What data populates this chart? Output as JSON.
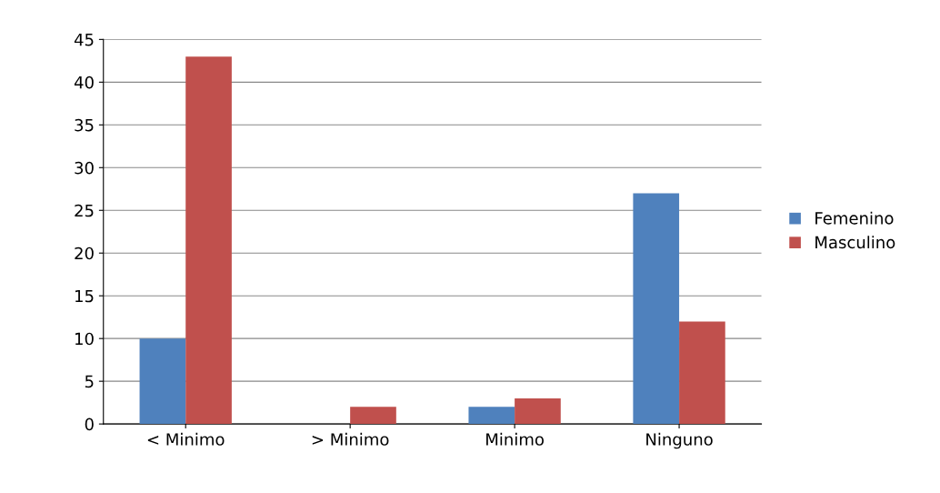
{
  "chart_data": {
    "type": "bar",
    "categories": [
      "< Minimo",
      "> Minimo",
      "Minimo",
      "Ninguno"
    ],
    "series": [
      {
        "name": "Femenino",
        "color": "#4f81bd",
        "values": [
          10,
          0,
          2,
          27
        ]
      },
      {
        "name": "Masculino",
        "color": "#c0504d",
        "values": [
          43,
          2,
          3,
          12
        ]
      }
    ],
    "ylim": [
      0,
      45
    ],
    "yticks": [
      0,
      5,
      10,
      15,
      20,
      25,
      30,
      35,
      40,
      45
    ],
    "grid": "y",
    "legend": "right"
  }
}
